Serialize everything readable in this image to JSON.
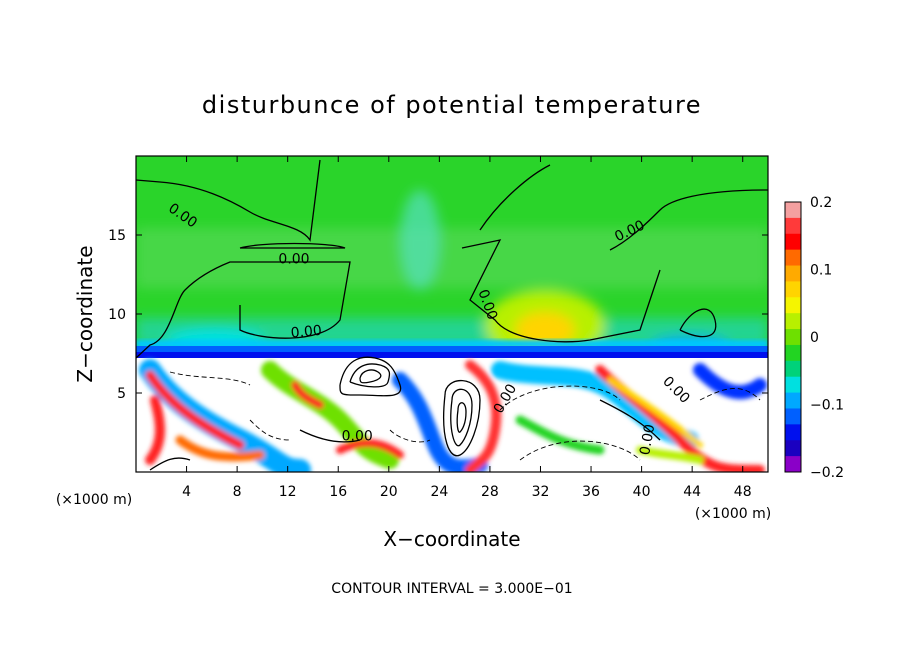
{
  "chart_data": {
    "type": "heatmap",
    "title": "disturbunce of potential temperature",
    "xlabel": "X−coordinate",
    "ylabel": "Z−coordinate",
    "x_unit_left": "(×1000 m)",
    "x_unit_right": "(×1000 m)",
    "xlim": [
      0,
      50
    ],
    "ylim": [
      0,
      20
    ],
    "x_ticks": [
      4,
      8,
      12,
      16,
      20,
      24,
      28,
      32,
      36,
      40,
      44,
      48
    ],
    "x_tick_labels": [
      "4",
      "8",
      "12",
      "16",
      "20",
      "24",
      "28",
      "32",
      "36",
      "40",
      "44",
      "48"
    ],
    "y_ticks": [
      5,
      10,
      15
    ],
    "y_tick_labels": [
      "5",
      "10",
      "15"
    ],
    "colorbar": {
      "range": [
        -0.2,
        0.2
      ],
      "ticks": [
        0.2,
        0.1,
        0,
        -0.1,
        -0.2
      ],
      "tick_labels": [
        "0.2",
        "0.1",
        "0",
        "−0.1",
        "−0.2"
      ],
      "colors": [
        "#f4a0a0",
        "#ff3a3a",
        "#ff0000",
        "#ff6a00",
        "#ffaa00",
        "#ffd400",
        "#f5f500",
        "#b8f000",
        "#6ee000",
        "#22d422",
        "#00d27a",
        "#00e0e0",
        "#00a8ff",
        "#0060ff",
        "#0010ee",
        "#1a00c0",
        "#8a00c8"
      ]
    },
    "contour_labels": [
      {
        "text": "0.00",
        "x": 3.5,
        "z": 16.0,
        "rot": 35
      },
      {
        "text": "0.00",
        "x": 12.5,
        "z": 13.2,
        "rot": 0
      },
      {
        "text": "0.00",
        "x": 13.5,
        "z": 8.6,
        "rot": -5
      },
      {
        "text": "0.00",
        "x": 27.5,
        "z": 10.5,
        "rot": 70
      },
      {
        "text": "0.00",
        "x": 39.2,
        "z": 15.0,
        "rot": -25
      },
      {
        "text": "0.00",
        "x": 29.5,
        "z": 4.5,
        "rot": -60
      },
      {
        "text": "0.00",
        "x": 17.5,
        "z": 2.0,
        "rot": 0
      },
      {
        "text": "0.00",
        "x": 42.5,
        "z": 5.0,
        "rot": 45
      },
      {
        "text": "0.00",
        "x": 40.8,
        "z": 2.0,
        "rot": -80
      }
    ],
    "footnote": "CONTOUR INTERVAL = 3.000E−01"
  }
}
